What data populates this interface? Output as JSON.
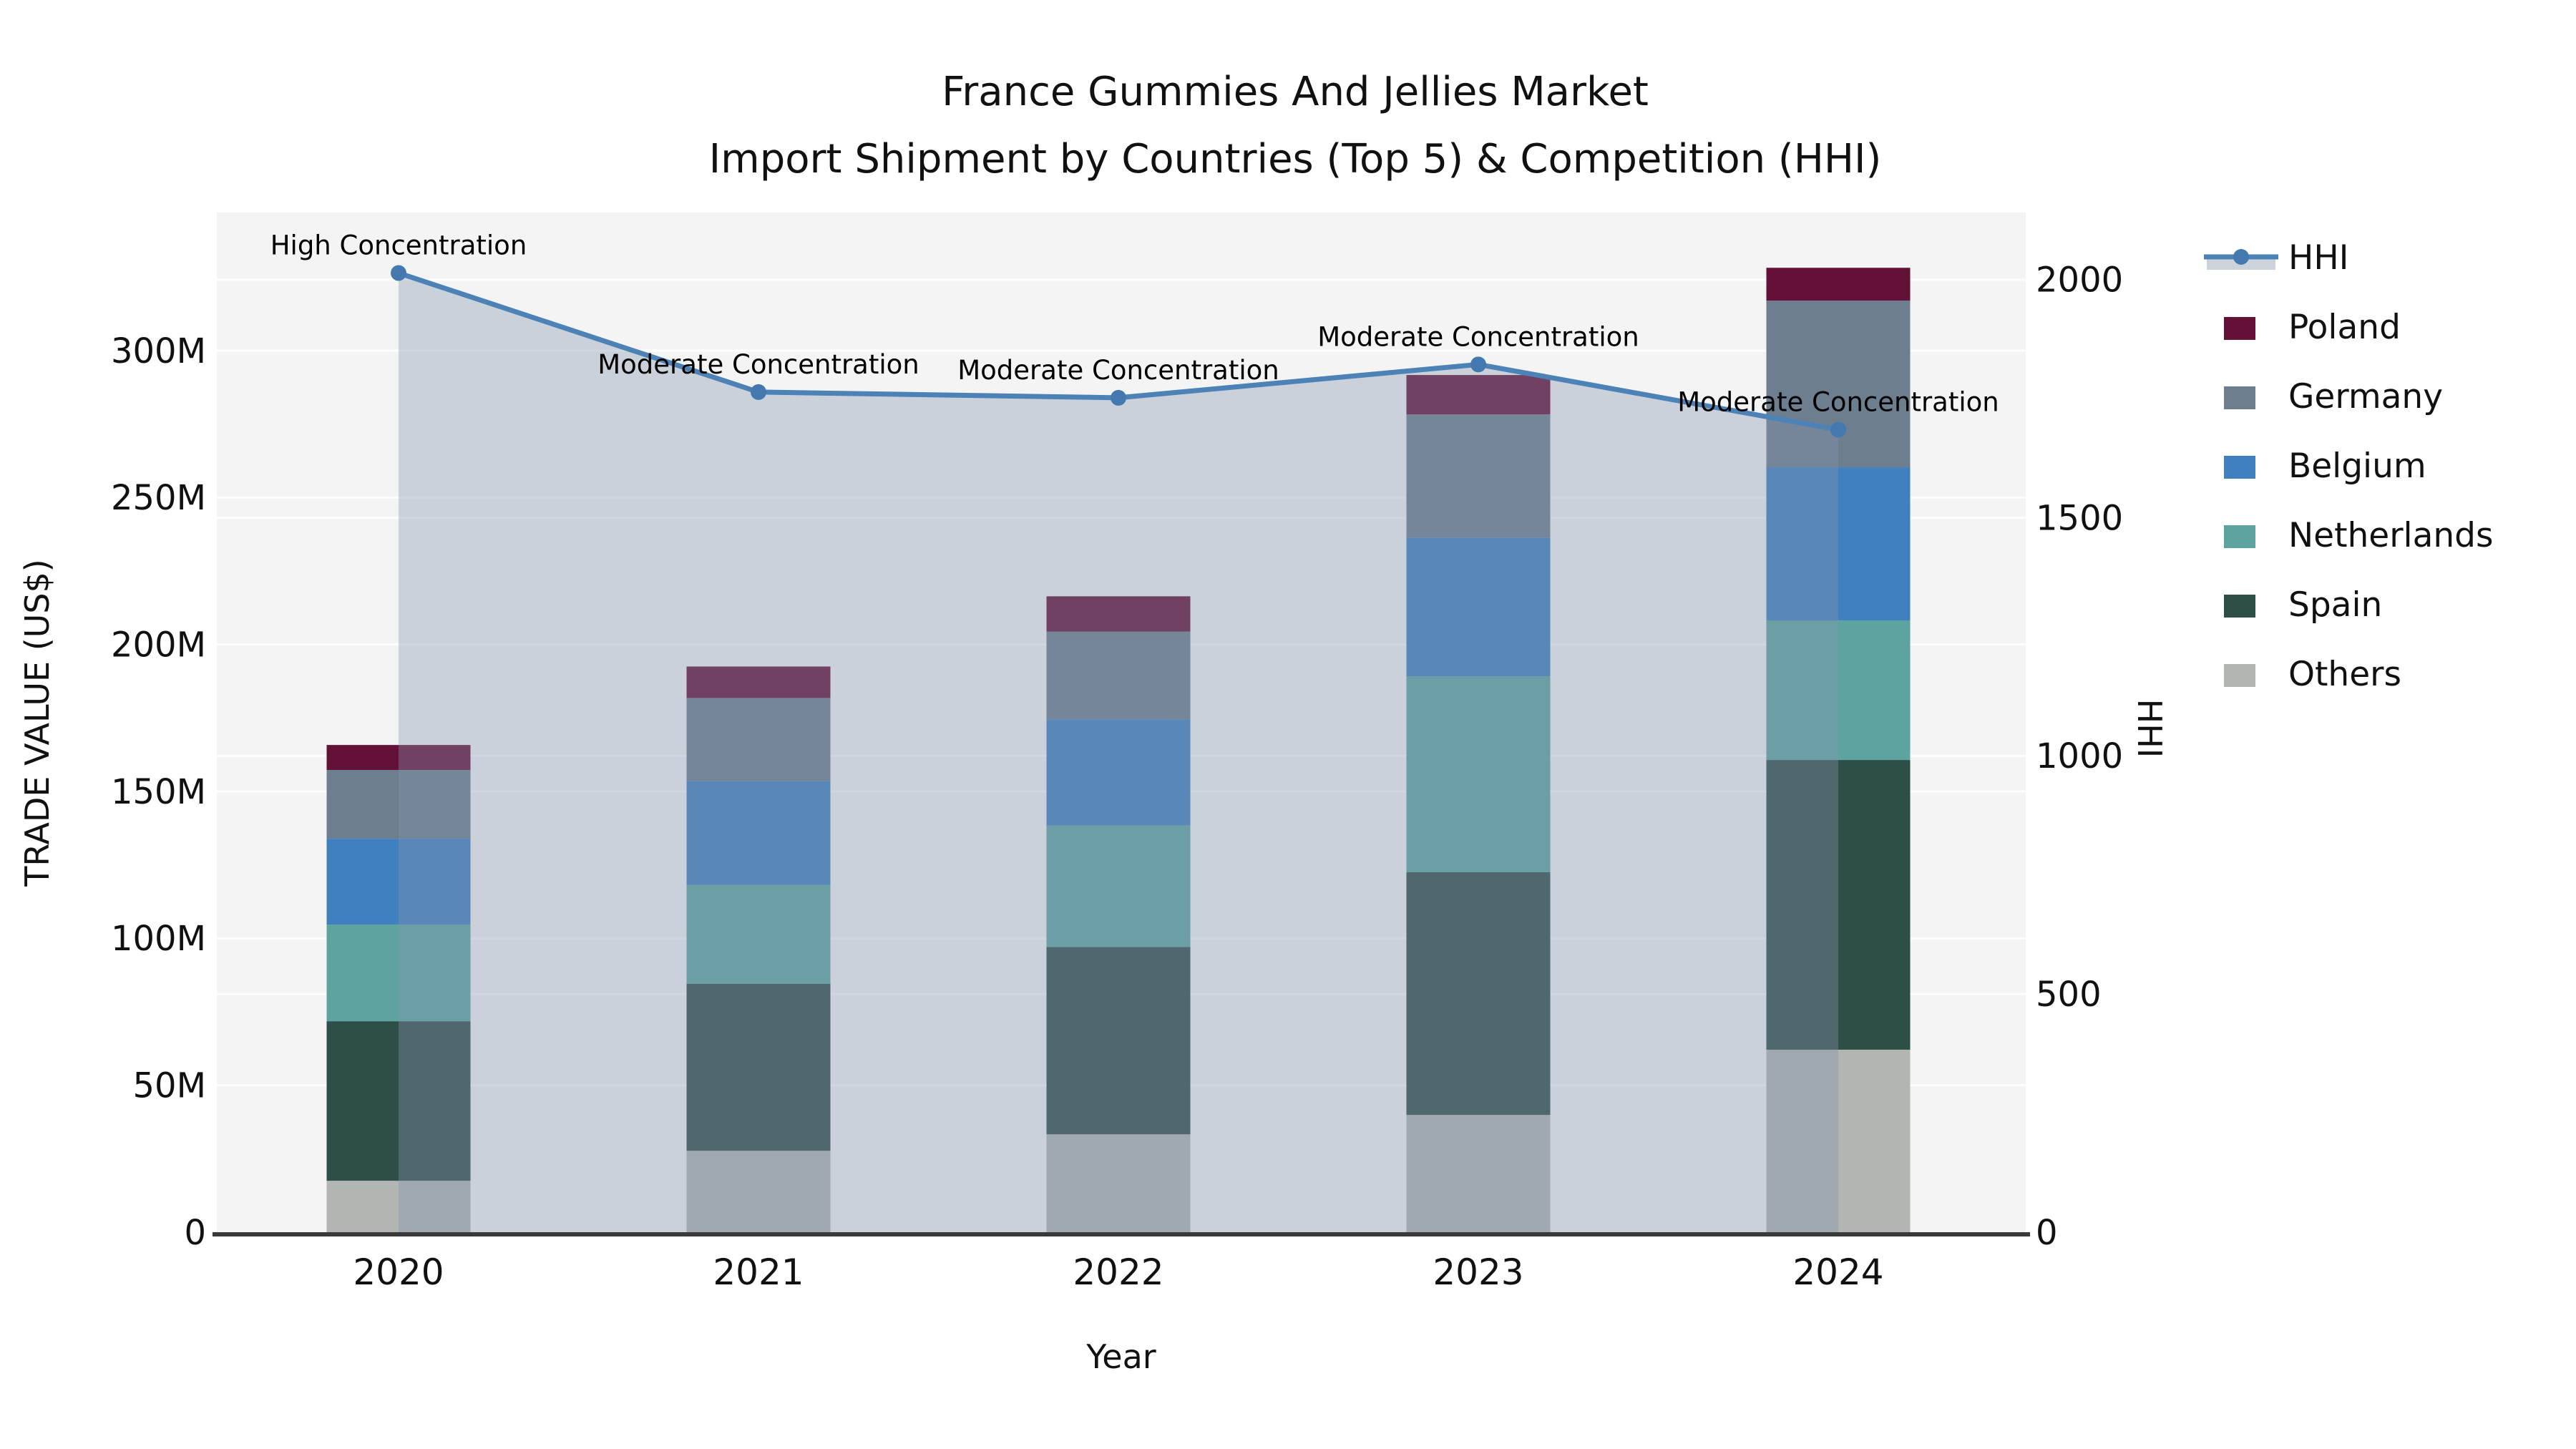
{
  "chart_data": {
    "type": "combo-stacked-bar-line",
    "title": {
      "line1": "France Gummies And Jellies Market",
      "line2": "Import Shipment by Countries (Top 5) & Competition (HHI)"
    },
    "xlabel": "Year",
    "categories": [
      "2020",
      "2021",
      "2022",
      "2023",
      "2024"
    ],
    "stack_order_bottom_to_top": [
      "Others",
      "Spain",
      "Netherlands",
      "Belgium",
      "Germany",
      "Poland"
    ],
    "series": [
      {
        "name": "Poland",
        "color": "#641138",
        "values": [
          8.5,
          10.7,
          12.0,
          13.4,
          11.2
        ]
      },
      {
        "name": "Germany",
        "color": "#6d7e8f",
        "values": [
          23.4,
          28.3,
          29.9,
          41.9,
          56.7
        ]
      },
      {
        "name": "Belgium",
        "color": "#4080be",
        "values": [
          29.2,
          35.3,
          36.1,
          47.2,
          52.1
        ]
      },
      {
        "name": "Netherlands",
        "color": "#5da4a0",
        "values": [
          32.9,
          33.7,
          41.3,
          66.7,
          47.5
        ]
      },
      {
        "name": "Spain",
        "color": "#2e4f48",
        "values": [
          54.3,
          56.8,
          63.8,
          82.6,
          98.6
        ]
      },
      {
        "name": "Others",
        "color": "#b2b5b2",
        "values": [
          17.5,
          27.7,
          33.3,
          39.9,
          62.1
        ]
      }
    ],
    "bar_totals_millions": [
      165.8,
      192.5,
      216.4,
      291.7,
      328.2
    ],
    "line_series": {
      "name": "HHI",
      "values": [
        2014,
        1764,
        1752,
        1822,
        1685
      ],
      "color": "#4c82b6",
      "marker_color": "#4379ae",
      "area_fill": "rgba(133,150,174,0.37)",
      "area_swatch": "#cdd3db"
    },
    "annotations": [
      {
        "year": "2020",
        "text": "High Concentration"
      },
      {
        "year": "2021",
        "text": "Moderate Concentration"
      },
      {
        "year": "2022",
        "text": "Moderate Concentration"
      },
      {
        "year": "2023",
        "text": "Moderate Concentration"
      },
      {
        "year": "2024",
        "text": "Moderate Concentration"
      }
    ],
    "left_axis": {
      "label": "TRADE VALUE (US$)",
      "ticks": [
        "0",
        "50M",
        "100M",
        "150M",
        "200M",
        "250M",
        "300M"
      ],
      "tick_values": [
        0,
        50,
        100,
        150,
        200,
        250,
        300
      ],
      "range_max_millions": 347
    },
    "right_axis": {
      "label": "HHI",
      "ticks": [
        "0",
        "500",
        "1000",
        "1500",
        "2000"
      ],
      "tick_values": [
        0,
        500,
        1000,
        1500,
        2000
      ],
      "range_max": 2141
    },
    "legend": [
      {
        "label": "HHI",
        "type": "line"
      },
      {
        "label": "Poland",
        "type": "patch",
        "color": "#641138"
      },
      {
        "label": "Germany",
        "type": "patch",
        "color": "#6d7e8f"
      },
      {
        "label": "Belgium",
        "type": "patch",
        "color": "#4080be"
      },
      {
        "label": "Netherlands",
        "type": "patch",
        "color": "#5da4a0"
      },
      {
        "label": "Spain",
        "type": "patch",
        "color": "#2e4f48"
      },
      {
        "label": "Others",
        "type": "patch",
        "color": "#b2b5b2"
      }
    ],
    "style": {
      "plot_bg": "#f4f4f4",
      "grid_color": "rgba(255,255,255,0.9)",
      "spine_color": "#3a3a3a",
      "text_color": "#111111"
    },
    "grid": true,
    "legend_position": "right-top-outside"
  }
}
